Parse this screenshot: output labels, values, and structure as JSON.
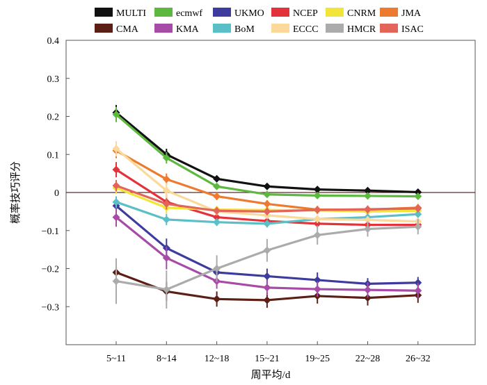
{
  "chart_data": {
    "type": "line",
    "xlabel": "周平均/d",
    "ylabel": "概率技巧评分",
    "categories": [
      "5~11",
      "8~14",
      "12~18",
      "15~21",
      "19~25",
      "22~28",
      "26~32"
    ],
    "ylim": [
      -0.4,
      0.4
    ],
    "yticks": [
      -0.3,
      -0.2,
      -0.1,
      0,
      0.1,
      0.2,
      0.3,
      0.4
    ],
    "ytick_labels": [
      "−0.3",
      "−0.2",
      "−0.1",
      "0",
      "0.1",
      "0.2",
      "0.3",
      "0.4"
    ],
    "zero_line": true,
    "grid": false,
    "legend_position": "top",
    "series": [
      {
        "name": "MULTI",
        "color": "#111111",
        "values": [
          0.21,
          0.1,
          0.036,
          0.016,
          0.008,
          0.005,
          0.001
        ],
        "errors": [
          0.02,
          0.015,
          0.008,
          0.006,
          0.006,
          0.006,
          0.005
        ]
      },
      {
        "name": "ecmwf",
        "color": "#5cb83f",
        "values": [
          0.205,
          0.091,
          0.016,
          -0.005,
          -0.008,
          -0.009,
          -0.01
        ],
        "errors": [
          0.02,
          0.015,
          0.008,
          0.006,
          0.006,
          0.006,
          0.005
        ]
      },
      {
        "name": "UKMO",
        "color": "#3d3b9e",
        "values": [
          -0.035,
          -0.146,
          -0.21,
          -0.22,
          -0.23,
          -0.24,
          -0.237
        ],
        "errors": [
          0.02,
          0.025,
          0.02,
          0.02,
          0.02,
          0.015,
          0.015
        ]
      },
      {
        "name": "NCEP",
        "color": "#e3323a",
        "values": [
          0.06,
          -0.025,
          -0.065,
          -0.075,
          -0.082,
          -0.085,
          -0.085
        ],
        "errors": [
          0.02,
          0.02,
          0.012,
          0.01,
          0.01,
          0.01,
          0.01
        ]
      },
      {
        "name": "CNRM",
        "color": "#f2e53a",
        "values": [
          0.012,
          -0.04,
          -0.045,
          -0.046,
          -0.047,
          -0.05,
          -0.048
        ],
        "errors": [
          0.015,
          0.015,
          0.01,
          0.01,
          0.01,
          0.01,
          0.01
        ]
      },
      {
        "name": "JMA",
        "color": "#ee7a30",
        "values": [
          0.11,
          0.035,
          -0.01,
          -0.03,
          -0.045,
          -0.045,
          -0.04
        ],
        "errors": [
          0.02,
          0.015,
          0.01,
          0.01,
          0.01,
          0.01,
          0.01
        ]
      },
      {
        "name": "CMA",
        "color": "#5c1f16",
        "values": [
          -0.21,
          -0.26,
          -0.28,
          -0.283,
          -0.272,
          -0.277,
          -0.27
        ],
        "errors": [
          0.03,
          0.025,
          0.02,
          0.02,
          0.02,
          0.02,
          0.02
        ]
      },
      {
        "name": "KMA",
        "color": "#a64ca6",
        "values": [
          -0.065,
          -0.172,
          -0.233,
          -0.25,
          -0.254,
          -0.256,
          -0.258
        ],
        "errors": [
          0.025,
          0.03,
          0.02,
          0.02,
          0.02,
          0.02,
          0.02
        ]
      },
      {
        "name": "BoM",
        "color": "#5bbfc8",
        "values": [
          -0.025,
          -0.071,
          -0.078,
          -0.082,
          -0.07,
          -0.065,
          -0.057
        ],
        "errors": [
          0.015,
          0.015,
          0.01,
          0.01,
          0.01,
          0.01,
          0.01
        ]
      },
      {
        "name": "ECCC",
        "color": "#fbd99a",
        "values": [
          0.115,
          0.005,
          -0.05,
          -0.06,
          -0.07,
          -0.072,
          -0.076
        ],
        "errors": [
          0.02,
          0.02,
          0.01,
          0.01,
          0.01,
          0.01,
          0.01
        ]
      },
      {
        "name": "HMCR",
        "color": "#ababab",
        "values": [
          -0.233,
          -0.255,
          -0.2,
          -0.152,
          -0.112,
          -0.096,
          -0.09
        ],
        "errors": [
          0.06,
          0.05,
          0.035,
          0.03,
          0.025,
          0.02,
          0.02
        ]
      },
      {
        "name": "ISAC",
        "color": "#e3655a",
        "values": [
          0.018,
          -0.03,
          -0.048,
          -0.05,
          -0.046,
          -0.044,
          -0.042
        ],
        "errors": [
          0.015,
          0.015,
          0.01,
          0.01,
          0.01,
          0.01,
          0.01
        ]
      }
    ]
  }
}
